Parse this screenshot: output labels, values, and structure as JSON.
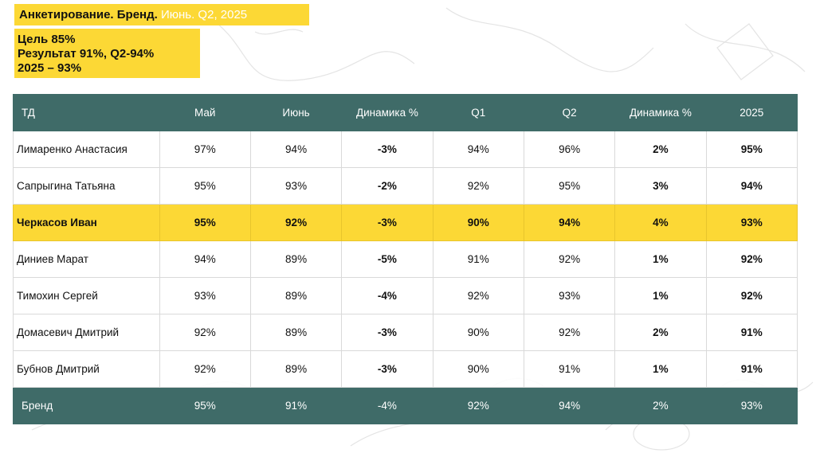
{
  "header": {
    "title_main": "Анкетирование. Бренд.",
    "title_sub": "Июнь. Q2, 2025"
  },
  "goal": {
    "line1": "Цель 85%",
    "line2": "Результат 91%, Q2-94%",
    "line3": "2025 – 93%"
  },
  "colors": {
    "accent_yellow": "#fcd835",
    "header_teal": "#3f6b68"
  },
  "table": {
    "columns": [
      "ТД",
      "Май",
      "Июнь",
      "Динамика %",
      "Q1",
      "Q2",
      "Динамика %",
      "2025"
    ],
    "rows": [
      [
        "Лимаренко Анастасия",
        "97%",
        "94%",
        "-3%",
        "94%",
        "96%",
        "2%",
        "95%"
      ],
      [
        "Сапрыгина Татьяна",
        "95%",
        "93%",
        "-2%",
        "92%",
        "95%",
        "3%",
        "94%"
      ],
      [
        "Черкасов Иван",
        "95%",
        "92%",
        "-3%",
        "90%",
        "94%",
        "4%",
        "93%"
      ],
      [
        "Диниев Марат",
        "94%",
        "89%",
        "-5%",
        "91%",
        "92%",
        "1%",
        "92%"
      ],
      [
        "Тимохин Сергей",
        "93%",
        "89%",
        "-4%",
        "92%",
        "93%",
        "1%",
        "92%"
      ],
      [
        "Домасевич Дмитрий",
        "92%",
        "89%",
        "-3%",
        "90%",
        "92%",
        "2%",
        "91%"
      ],
      [
        "Бубнов Дмитрий",
        "92%",
        "89%",
        "-3%",
        "90%",
        "91%",
        "1%",
        "91%"
      ]
    ],
    "total": [
      "Бренд",
      "95%",
      "91%",
      "-4%",
      "92%",
      "94%",
      "2%",
      "93%"
    ]
  }
}
